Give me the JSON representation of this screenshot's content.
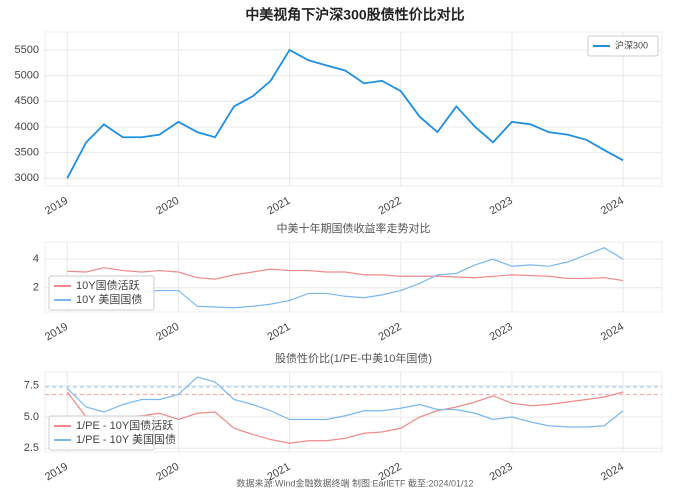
{
  "title": "中美视角下沪深300股债性价比对比",
  "footer": "数据来源:Wind金融数据终端  制图:EarlETF 截至:2024/01/12",
  "chart_data": [
    {
      "type": "line",
      "legend": "upper right",
      "grid": true,
      "x": [
        2019,
        2019.17,
        2019.33,
        2019.5,
        2019.67,
        2019.83,
        2020,
        2020.17,
        2020.33,
        2020.5,
        2020.67,
        2020.83,
        2021,
        2021.17,
        2021.33,
        2021.5,
        2021.67,
        2021.83,
        2022,
        2022.17,
        2022.33,
        2022.5,
        2022.67,
        2022.83,
        2023,
        2023.17,
        2023.33,
        2023.5,
        2023.67,
        2023.83,
        2024
      ],
      "series": [
        {
          "name": "沪深300",
          "color": "#1f8fe0",
          "values": [
            3000,
            3700,
            4050,
            3800,
            3800,
            3850,
            4100,
            3900,
            3800,
            4400,
            4600,
            4900,
            5500,
            5300,
            5200,
            5100,
            4850,
            4900,
            4700,
            4200,
            3900,
            4400,
            4000,
            3700,
            4100,
            4050,
            3900,
            3850,
            3750,
            3550,
            3350
          ]
        }
      ],
      "xlim": [
        2018.8,
        2024.35
      ],
      "xticks": [
        2019,
        2020,
        2021,
        2022,
        2023,
        2024
      ],
      "ylim": [
        2850,
        5850
      ],
      "yticks": [
        3000,
        3500,
        4000,
        4500,
        5000,
        5500
      ]
    },
    {
      "type": "line",
      "title": "中美十年期国债收益率走势对比",
      "legend": "upper left",
      "grid": true,
      "x": [
        2019,
        2019.17,
        2019.33,
        2019.5,
        2019.67,
        2019.83,
        2020,
        2020.17,
        2020.33,
        2020.5,
        2020.67,
        2020.83,
        2021,
        2021.17,
        2021.33,
        2021.5,
        2021.67,
        2021.83,
        2022,
        2022.17,
        2022.33,
        2022.5,
        2022.67,
        2022.83,
        2023,
        2023.17,
        2023.33,
        2023.5,
        2023.67,
        2023.83,
        2024
      ],
      "series": [
        {
          "name": "10Y国债活跃",
          "color": "#f08a8a",
          "values": [
            3.15,
            3.1,
            3.4,
            3.2,
            3.1,
            3.2,
            3.1,
            2.7,
            2.6,
            2.9,
            3.1,
            3.3,
            3.2,
            3.2,
            3.1,
            3.1,
            2.9,
            2.9,
            2.8,
            2.8,
            2.8,
            2.75,
            2.7,
            2.8,
            2.9,
            2.85,
            2.8,
            2.65,
            2.65,
            2.7,
            2.5
          ]
        },
        {
          "name": "10Y 美国国债",
          "color": "#7ab8ee",
          "values": [
            2.7,
            2.7,
            2.5,
            2.0,
            1.7,
            1.8,
            1.8,
            0.7,
            0.65,
            0.6,
            0.7,
            0.85,
            1.1,
            1.6,
            1.6,
            1.4,
            1.3,
            1.5,
            1.8,
            2.3,
            2.9,
            3.0,
            3.6,
            4.0,
            3.5,
            3.6,
            3.5,
            3.8,
            4.3,
            4.8,
            4.0
          ]
        }
      ],
      "xlim": [
        2018.8,
        2024.35
      ],
      "xticks": [
        2019,
        2020,
        2021,
        2022,
        2023,
        2024
      ],
      "ylim": [
        0.3,
        5.2
      ],
      "yticks": [
        2,
        4
      ]
    },
    {
      "type": "line",
      "title": "股债性价比(1/PE-中美10年国债)",
      "legend": "upper left",
      "grid": true,
      "x": [
        2019,
        2019.17,
        2019.33,
        2019.5,
        2019.67,
        2019.83,
        2020,
        2020.17,
        2020.33,
        2020.5,
        2020.67,
        2020.83,
        2021,
        2021.17,
        2021.33,
        2021.5,
        2021.67,
        2021.83,
        2022,
        2022.17,
        2022.33,
        2022.5,
        2022.67,
        2022.83,
        2023,
        2023.17,
        2023.33,
        2023.5,
        2023.67,
        2023.83,
        2024
      ],
      "series": [
        {
          "name": "1/PE - 10Y国债活跃",
          "color": "#f08a8a",
          "values": [
            7.0,
            5.0,
            4.9,
            5.0,
            5.1,
            5.3,
            4.8,
            5.3,
            5.4,
            4.1,
            3.6,
            3.2,
            2.9,
            3.1,
            3.1,
            3.3,
            3.7,
            3.8,
            4.1,
            5.0,
            5.5,
            5.8,
            6.2,
            6.7,
            6.1,
            5.9,
            6.0,
            6.2,
            6.4,
            6.6,
            7.0
          ]
        },
        {
          "name": "1/PE - 10Y 美国国债",
          "color": "#7ab8ee",
          "values": [
            7.3,
            5.8,
            5.4,
            6.0,
            6.4,
            6.4,
            6.8,
            8.2,
            7.8,
            6.4,
            6.0,
            5.5,
            4.8,
            4.8,
            4.8,
            5.1,
            5.5,
            5.5,
            5.7,
            6.0,
            5.6,
            5.6,
            5.3,
            4.8,
            5.0,
            4.6,
            4.3,
            4.2,
            4.2,
            4.3,
            5.5
          ]
        }
      ],
      "hlines": [
        {
          "value": 7.4,
          "color": "#a8d0f4"
        },
        {
          "value": 6.8,
          "color": "#f4b0b0"
        }
      ],
      "xlim": [
        2018.8,
        2024.35
      ],
      "xticks": [
        2019,
        2020,
        2021,
        2022,
        2023,
        2024
      ],
      "ylim": [
        2.2,
        8.6
      ],
      "yticks": [
        2.5,
        {
          "value": 5,
          "label": "5.0"
        },
        7.5
      ]
    }
  ]
}
